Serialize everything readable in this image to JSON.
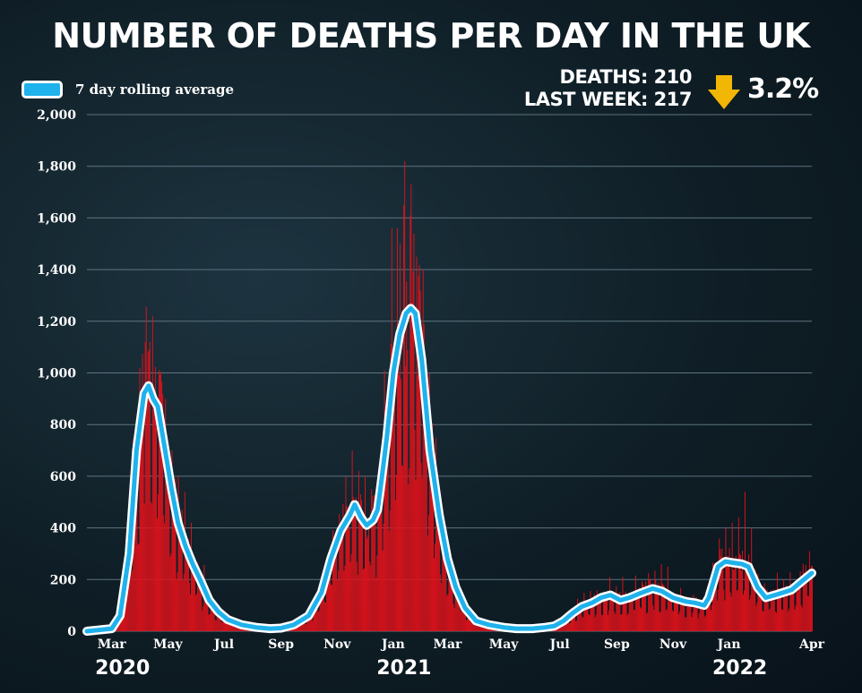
{
  "chart_data": {
    "type": "bar",
    "title": "NUMBER OF DEATHS PER DAY IN THE UK",
    "legend": {
      "label": "7 day rolling average",
      "placement": "top-left"
    },
    "stats": {
      "deaths": "DEATHS: 210",
      "last_week": "LAST WEEK: 217",
      "change": "3.2%",
      "direction": "down"
    },
    "ylim": [
      0,
      2000
    ],
    "yticks": [
      0,
      200,
      400,
      600,
      800,
      "1,000",
      "1,200",
      "1,400",
      "1,600",
      "1,800",
      "2,000"
    ],
    "grid": true,
    "x_range": [
      "2020-02-03",
      "2022-04-01"
    ],
    "xticks": [
      {
        "label": "Mar",
        "date": "2020-03-01"
      },
      {
        "label": "May",
        "date": "2020-05-01"
      },
      {
        "label": "Jul",
        "date": "2020-07-01"
      },
      {
        "label": "Sep",
        "date": "2020-09-01"
      },
      {
        "label": "Nov",
        "date": "2020-11-01"
      },
      {
        "label": "Jan",
        "date": "2021-01-01"
      },
      {
        "label": "Mar",
        "date": "2021-03-01"
      },
      {
        "label": "May",
        "date": "2021-05-01"
      },
      {
        "label": "Jul",
        "date": "2021-07-01"
      },
      {
        "label": "Sep",
        "date": "2021-09-01"
      },
      {
        "label": "Nov",
        "date": "2021-11-01"
      },
      {
        "label": "Jan",
        "date": "2022-01-01"
      },
      {
        "label": "Apr",
        "date": "2022-04-01"
      }
    ],
    "years": [
      {
        "label": "2020",
        "date": "2020-03-01"
      },
      {
        "label": "2021",
        "date": "2021-01-01"
      },
      {
        "label": "2022",
        "date": "2022-01-01"
      }
    ],
    "series": [
      {
        "name": "7 day rolling average",
        "kind": "line",
        "color": "#1fb2ec",
        "points": [
          [
            "2020-02-03",
            0
          ],
          [
            "2020-03-01",
            10
          ],
          [
            "2020-03-10",
            60
          ],
          [
            "2020-03-20",
            300
          ],
          [
            "2020-03-28",
            700
          ],
          [
            "2020-04-05",
            920
          ],
          [
            "2020-04-10",
            950
          ],
          [
            "2020-04-15",
            900
          ],
          [
            "2020-04-20",
            870
          ],
          [
            "2020-04-28",
            700
          ],
          [
            "2020-05-05",
            550
          ],
          [
            "2020-05-12",
            420
          ],
          [
            "2020-05-20",
            330
          ],
          [
            "2020-05-28",
            260
          ],
          [
            "2020-06-05",
            200
          ],
          [
            "2020-06-15",
            120
          ],
          [
            "2020-06-25",
            75
          ],
          [
            "2020-07-05",
            45
          ],
          [
            "2020-07-20",
            25
          ],
          [
            "2020-08-05",
            15
          ],
          [
            "2020-08-20",
            10
          ],
          [
            "2020-09-01",
            12
          ],
          [
            "2020-09-15",
            25
          ],
          [
            "2020-10-01",
            60
          ],
          [
            "2020-10-15",
            150
          ],
          [
            "2020-10-25",
            280
          ],
          [
            "2020-11-05",
            390
          ],
          [
            "2020-11-15",
            450
          ],
          [
            "2020-11-20",
            490
          ],
          [
            "2020-11-27",
            440
          ],
          [
            "2020-12-03",
            410
          ],
          [
            "2020-12-10",
            430
          ],
          [
            "2020-12-15",
            470
          ],
          [
            "2020-12-18",
            550
          ],
          [
            "2020-12-25",
            750
          ],
          [
            "2021-01-01",
            1000
          ],
          [
            "2021-01-08",
            1150
          ],
          [
            "2021-01-15",
            1230
          ],
          [
            "2021-01-20",
            1250
          ],
          [
            "2021-01-25",
            1230
          ],
          [
            "2021-02-01",
            1050
          ],
          [
            "2021-02-10",
            700
          ],
          [
            "2021-02-20",
            450
          ],
          [
            "2021-03-01",
            280
          ],
          [
            "2021-03-10",
            170
          ],
          [
            "2021-03-20",
            90
          ],
          [
            "2021-04-01",
            40
          ],
          [
            "2021-04-15",
            25
          ],
          [
            "2021-05-01",
            15
          ],
          [
            "2021-05-15",
            10
          ],
          [
            "2021-06-01",
            10
          ],
          [
            "2021-06-15",
            15
          ],
          [
            "2021-06-25",
            20
          ],
          [
            "2021-07-05",
            40
          ],
          [
            "2021-07-15",
            70
          ],
          [
            "2021-07-25",
            95
          ],
          [
            "2021-08-05",
            110
          ],
          [
            "2021-08-15",
            130
          ],
          [
            "2021-08-25",
            140
          ],
          [
            "2021-09-05",
            120
          ],
          [
            "2021-09-15",
            130
          ],
          [
            "2021-09-25",
            145
          ],
          [
            "2021-10-10",
            165
          ],
          [
            "2021-10-20",
            155
          ],
          [
            "2021-11-01",
            130
          ],
          [
            "2021-11-15",
            115
          ],
          [
            "2021-11-25",
            110
          ],
          [
            "2021-12-05",
            100
          ],
          [
            "2021-12-10",
            130
          ],
          [
            "2021-12-20",
            250
          ],
          [
            "2021-12-28",
            270
          ],
          [
            "2022-01-05",
            265
          ],
          [
            "2022-01-15",
            260
          ],
          [
            "2022-01-22",
            250
          ],
          [
            "2022-02-01",
            170
          ],
          [
            "2022-02-10",
            130
          ],
          [
            "2022-02-20",
            140
          ],
          [
            "2022-03-01",
            150
          ],
          [
            "2022-03-10",
            160
          ],
          [
            "2022-03-20",
            190
          ],
          [
            "2022-04-01",
            225
          ]
        ]
      },
      {
        "name": "Daily deaths",
        "kind": "bars",
        "color": "#e0121b",
        "spikes": [
          [
            "2020-04-06",
            1120
          ],
          [
            "2020-04-09",
            1080
          ],
          [
            "2020-04-10",
            1090
          ],
          [
            "2020-04-14",
            1220
          ],
          [
            "2020-04-21",
            1010
          ],
          [
            "2020-04-28",
            900
          ],
          [
            "2020-05-05",
            700
          ],
          [
            "2020-05-12",
            600
          ],
          [
            "2020-05-19",
            540
          ],
          [
            "2020-05-26",
            420
          ],
          [
            "2020-11-10",
            600
          ],
          [
            "2020-11-17",
            700
          ],
          [
            "2020-11-24",
            620
          ],
          [
            "2020-12-01",
            600
          ],
          [
            "2020-12-08",
            550
          ],
          [
            "2020-12-30",
            1560
          ],
          [
            "2021-01-08",
            1500
          ],
          [
            "2021-01-12",
            1650
          ],
          [
            "2021-01-13",
            1820
          ],
          [
            "2021-01-19",
            1610
          ],
          [
            "2021-01-20",
            1730
          ],
          [
            "2021-01-26",
            1450
          ],
          [
            "2021-02-02",
            1400
          ],
          [
            "2021-02-09",
            1000
          ],
          [
            "2021-02-16",
            750
          ],
          [
            "2021-08-24",
            210
          ],
          [
            "2021-09-07",
            210
          ],
          [
            "2021-10-19",
            260
          ],
          [
            "2021-10-26",
            250
          ],
          [
            "2021-12-28",
            400
          ],
          [
            "2022-01-04",
            420
          ],
          [
            "2022-01-11",
            440
          ],
          [
            "2022-01-18",
            540
          ],
          [
            "2022-01-25",
            400
          ],
          [
            "2022-03-29",
            310
          ]
        ]
      }
    ]
  }
}
